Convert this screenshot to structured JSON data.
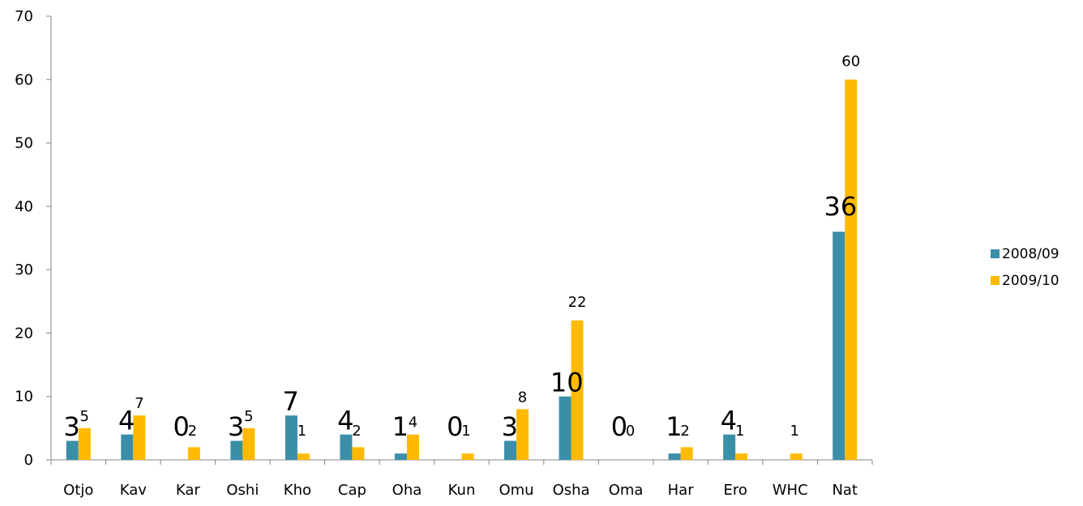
{
  "chart_data": {
    "type": "bar",
    "categories": [
      "Otjo",
      "Kav",
      "Kar",
      "Oshi",
      "Kho",
      "Cap",
      "Oha",
      "Kun",
      "Omu",
      "Osha",
      "Oma",
      "Har",
      "Ero",
      "WHC",
      "Nat"
    ],
    "series": [
      {
        "name": "2008/09",
        "color": "#3A8EA8",
        "values": [
          3,
          4,
          0,
          3,
          7,
          4,
          1,
          0,
          3,
          10,
          0,
          1,
          4,
          0,
          36
        ],
        "labels": [
          "3",
          "4",
          "0",
          "3",
          "7",
          "4",
          "1",
          "0",
          "3",
          "10",
          "0",
          "1",
          "4",
          "",
          "36"
        ]
      },
      {
        "name": "2009/10",
        "color": "#FFBA00",
        "values": [
          5,
          7,
          2,
          5,
          1,
          2,
          4,
          1,
          8,
          22,
          0,
          2,
          1,
          1,
          60
        ],
        "labels": [
          "5",
          "7",
          "2",
          "5",
          "1",
          "2",
          "4",
          "1",
          "8",
          "22",
          "0",
          "2",
          "1",
          "1",
          "60"
        ]
      }
    ],
    "yticks": [
      "0",
      "10",
      "20",
      "30",
      "40",
      "50",
      "60",
      "70"
    ],
    "ylim": [
      0,
      70
    ],
    "grid": false,
    "legend_position": "right"
  }
}
